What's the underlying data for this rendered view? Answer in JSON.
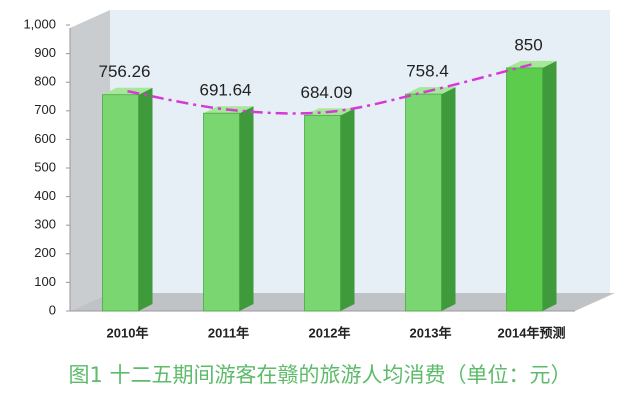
{
  "chart_data": {
    "type": "bar3d",
    "title": "图1  十二五期间游客在赣的旅游人均消费（单位：元）",
    "categories": [
      "2010年",
      "2011年",
      "2012年",
      "2013年",
      "2014年预测"
    ],
    "values": [
      756.26,
      691.64,
      684.09,
      758.4,
      850
    ],
    "colors": [
      "#7ad670",
      "#7ad670",
      "#7ad670",
      "#7ad670",
      "#5ccc4c"
    ],
    "line_color": "#d63ad6",
    "ylim": [
      0,
      1000
    ],
    "yticks": [
      0,
      100,
      200,
      300,
      400,
      500,
      600,
      700,
      800,
      900,
      {
        "value": 1000,
        "label": "1,000"
      }
    ],
    "grid": false
  }
}
